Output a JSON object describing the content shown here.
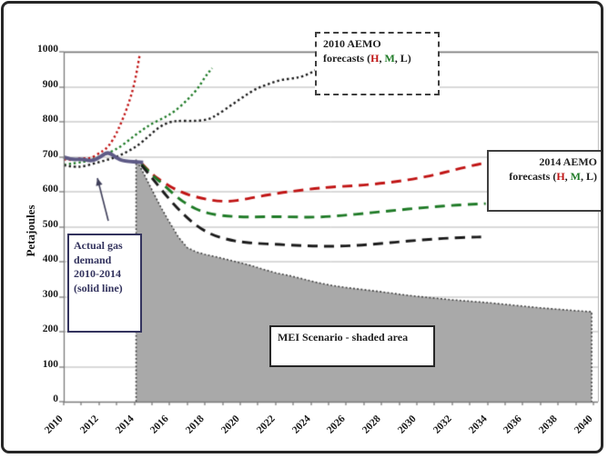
{
  "frame": {
    "background": "#ffffff",
    "border_color": "#262626"
  },
  "colors": {
    "red": "#c01414",
    "green": "#1e7a26",
    "black": "#1a1a1a",
    "purple": "#5e5a86",
    "area_fill": "#a9a9a9",
    "area_edge": "#3c3c3c",
    "grid": "#b5b5b5",
    "axis": "#7a7a7a",
    "arrow": "#3f3f5a"
  },
  "annotations": {
    "aemo2010": {
      "title": "2010 AEMO",
      "prefix": "forecasts (",
      "h": "H",
      "sep1": ", ",
      "m": "M",
      "sep2": ", ",
      "l": "L",
      "suffix": ")"
    },
    "aemo2014": {
      "title": "2014 AEMO",
      "prefix": "forecasts (",
      "h": "H",
      "sep1": ", ",
      "m": "M",
      "sep2": ", ",
      "l": "L",
      "suffix": ")"
    },
    "actual": {
      "line1": "Actual gas",
      "line2": "demand",
      "line3": "2010-2014",
      "line4": "(solid line)"
    },
    "mei": {
      "label": "MEI Scenario - shaded area"
    }
  },
  "chart_data": {
    "type": "line",
    "title": "",
    "xlabel": "",
    "ylabel": "Petajoules",
    "ylim": [
      0,
      1000
    ],
    "xlim": [
      2010,
      2040.4
    ],
    "grid": "horizontal",
    "legend_position": "none",
    "y_ticks": [
      0,
      100,
      200,
      300,
      400,
      500,
      600,
      700,
      800,
      900,
      1000
    ],
    "x_ticks": [
      2010,
      2012,
      2014,
      2016,
      2018,
      2020,
      2022,
      2024,
      2026,
      2028,
      2030,
      2032,
      2034,
      2036,
      2038,
      2040
    ],
    "series": [
      {
        "name": "2010 AEMO forecast H",
        "style": "dotted",
        "color": "red",
        "x": [
          2010,
          2010.5,
          2011,
          2011.5,
          2012,
          2012.4,
          2012.8,
          2013.2,
          2013.6,
          2014,
          2014.3
        ],
        "y": [
          693,
          689,
          697,
          694,
          710,
          722,
          748,
          790,
          840,
          905,
          990
        ]
      },
      {
        "name": "2010 AEMO forecast M",
        "style": "dotted",
        "color": "green",
        "x": [
          2010,
          2010.7,
          2011.4,
          2012,
          2012.6,
          2013.2,
          2013.8,
          2014.4,
          2015,
          2015.7,
          2016.3,
          2017,
          2017.6,
          2018,
          2018.4
        ],
        "y": [
          677,
          682,
          688,
          700,
          712,
          728,
          752,
          775,
          795,
          812,
          830,
          862,
          895,
          928,
          953
        ]
      },
      {
        "name": "2010 AEMO forecast L",
        "style": "dotted",
        "color": "black",
        "x": [
          2010,
          2010.6,
          2011.2,
          2011.8,
          2012.4,
          2013,
          2013.6,
          2014.2,
          2014.8,
          2015.4,
          2016,
          2016.6,
          2017.4,
          2018.2,
          2018.8,
          2019.5,
          2020.2,
          2020.9,
          2021.6,
          2022.3,
          2023,
          2023.6,
          2024.3
        ],
        "y": [
          676,
          670,
          673,
          682,
          690,
          700,
          714,
          732,
          758,
          785,
          800,
          803,
          802,
          806,
          823,
          848,
          872,
          895,
          908,
          920,
          924,
          930,
          948
        ]
      },
      {
        "name": "2014 AEMO forecast H",
        "style": "dashed",
        "color": "red",
        "x": [
          2014.4,
          2015,
          2015.6,
          2016.3,
          2017,
          2017.8,
          2018.6,
          2019.4,
          2020.2,
          2021,
          2021.8,
          2022.6,
          2023.4,
          2024.2,
          2025,
          2026,
          2027,
          2028,
          2029,
          2030,
          2031,
          2032,
          2033,
          2033.9
        ],
        "y": [
          682,
          650,
          628,
          607,
          592,
          581,
          574,
          572,
          578,
          586,
          593,
          599,
          604,
          609,
          613,
          616,
          619,
          624,
          630,
          638,
          648,
          661,
          673,
          683
        ]
      },
      {
        "name": "2014 AEMO forecast M",
        "style": "dashed",
        "color": "green",
        "x": [
          2014.4,
          2015,
          2015.7,
          2016.4,
          2017.1,
          2017.8,
          2018.5,
          2019.3,
          2020.1,
          2021,
          2022,
          2023,
          2024,
          2025,
          2026,
          2027,
          2028,
          2029,
          2030,
          2031,
          2032,
          2033,
          2033.9
        ],
        "y": [
          679,
          648,
          618,
          585,
          560,
          544,
          535,
          530,
          528,
          528,
          529,
          528,
          527,
          529,
          533,
          538,
          543,
          548,
          553,
          557,
          561,
          564,
          566
        ]
      },
      {
        "name": "2014 AEMO forecast L",
        "style": "dashed",
        "color": "black",
        "x": [
          2014.4,
          2015,
          2015.7,
          2016.4,
          2017.1,
          2017.8,
          2018.5,
          2019.3,
          2020.1,
          2021,
          2022,
          2023,
          2024,
          2025,
          2026,
          2027,
          2028,
          2029,
          2030,
          2031,
          2032,
          2033,
          2033.8
        ],
        "y": [
          676,
          640,
          595,
          555,
          520,
          493,
          475,
          463,
          456,
          452,
          450,
          447,
          445,
          444,
          445,
          448,
          452,
          457,
          461,
          465,
          468,
          470,
          471
        ]
      },
      {
        "name": "Actual gas demand 2010-2014",
        "style": "solid",
        "color": "purple",
        "x": [
          2010,
          2010.5,
          2011,
          2011.6,
          2012.1,
          2012.5,
          2013,
          2013.4,
          2014.5
        ],
        "y": [
          699,
          691,
          694,
          687,
          700,
          715,
          696,
          687,
          684
        ]
      }
    ],
    "area": {
      "name": "MEI Scenario",
      "fill": "area_fill",
      "edge_style": "dotted",
      "x": [
        2014.1,
        2014.5,
        2015,
        2015.5,
        2016,
        2016.5,
        2017,
        2017.5,
        2018,
        2018.8,
        2019.6,
        2020.4,
        2021.2,
        2022,
        2022.8,
        2023.6,
        2024.4,
        2025.2,
        2026,
        2027,
        2028,
        2029,
        2030,
        2031,
        2032,
        2033,
        2034,
        2035,
        2036,
        2037,
        2038,
        2039,
        2039.9
      ],
      "y": [
        692,
        655,
        605,
        556,
        512,
        470,
        440,
        428,
        421,
        412,
        402,
        392,
        380,
        368,
        360,
        350,
        340,
        332,
        326,
        320,
        314,
        307,
        301,
        296,
        291,
        287,
        283,
        278,
        273,
        268,
        264,
        260,
        257
      ]
    },
    "arrow": {
      "from_x": 117,
      "from_y": 241,
      "to_x": 105,
      "to_y": 194
    }
  }
}
